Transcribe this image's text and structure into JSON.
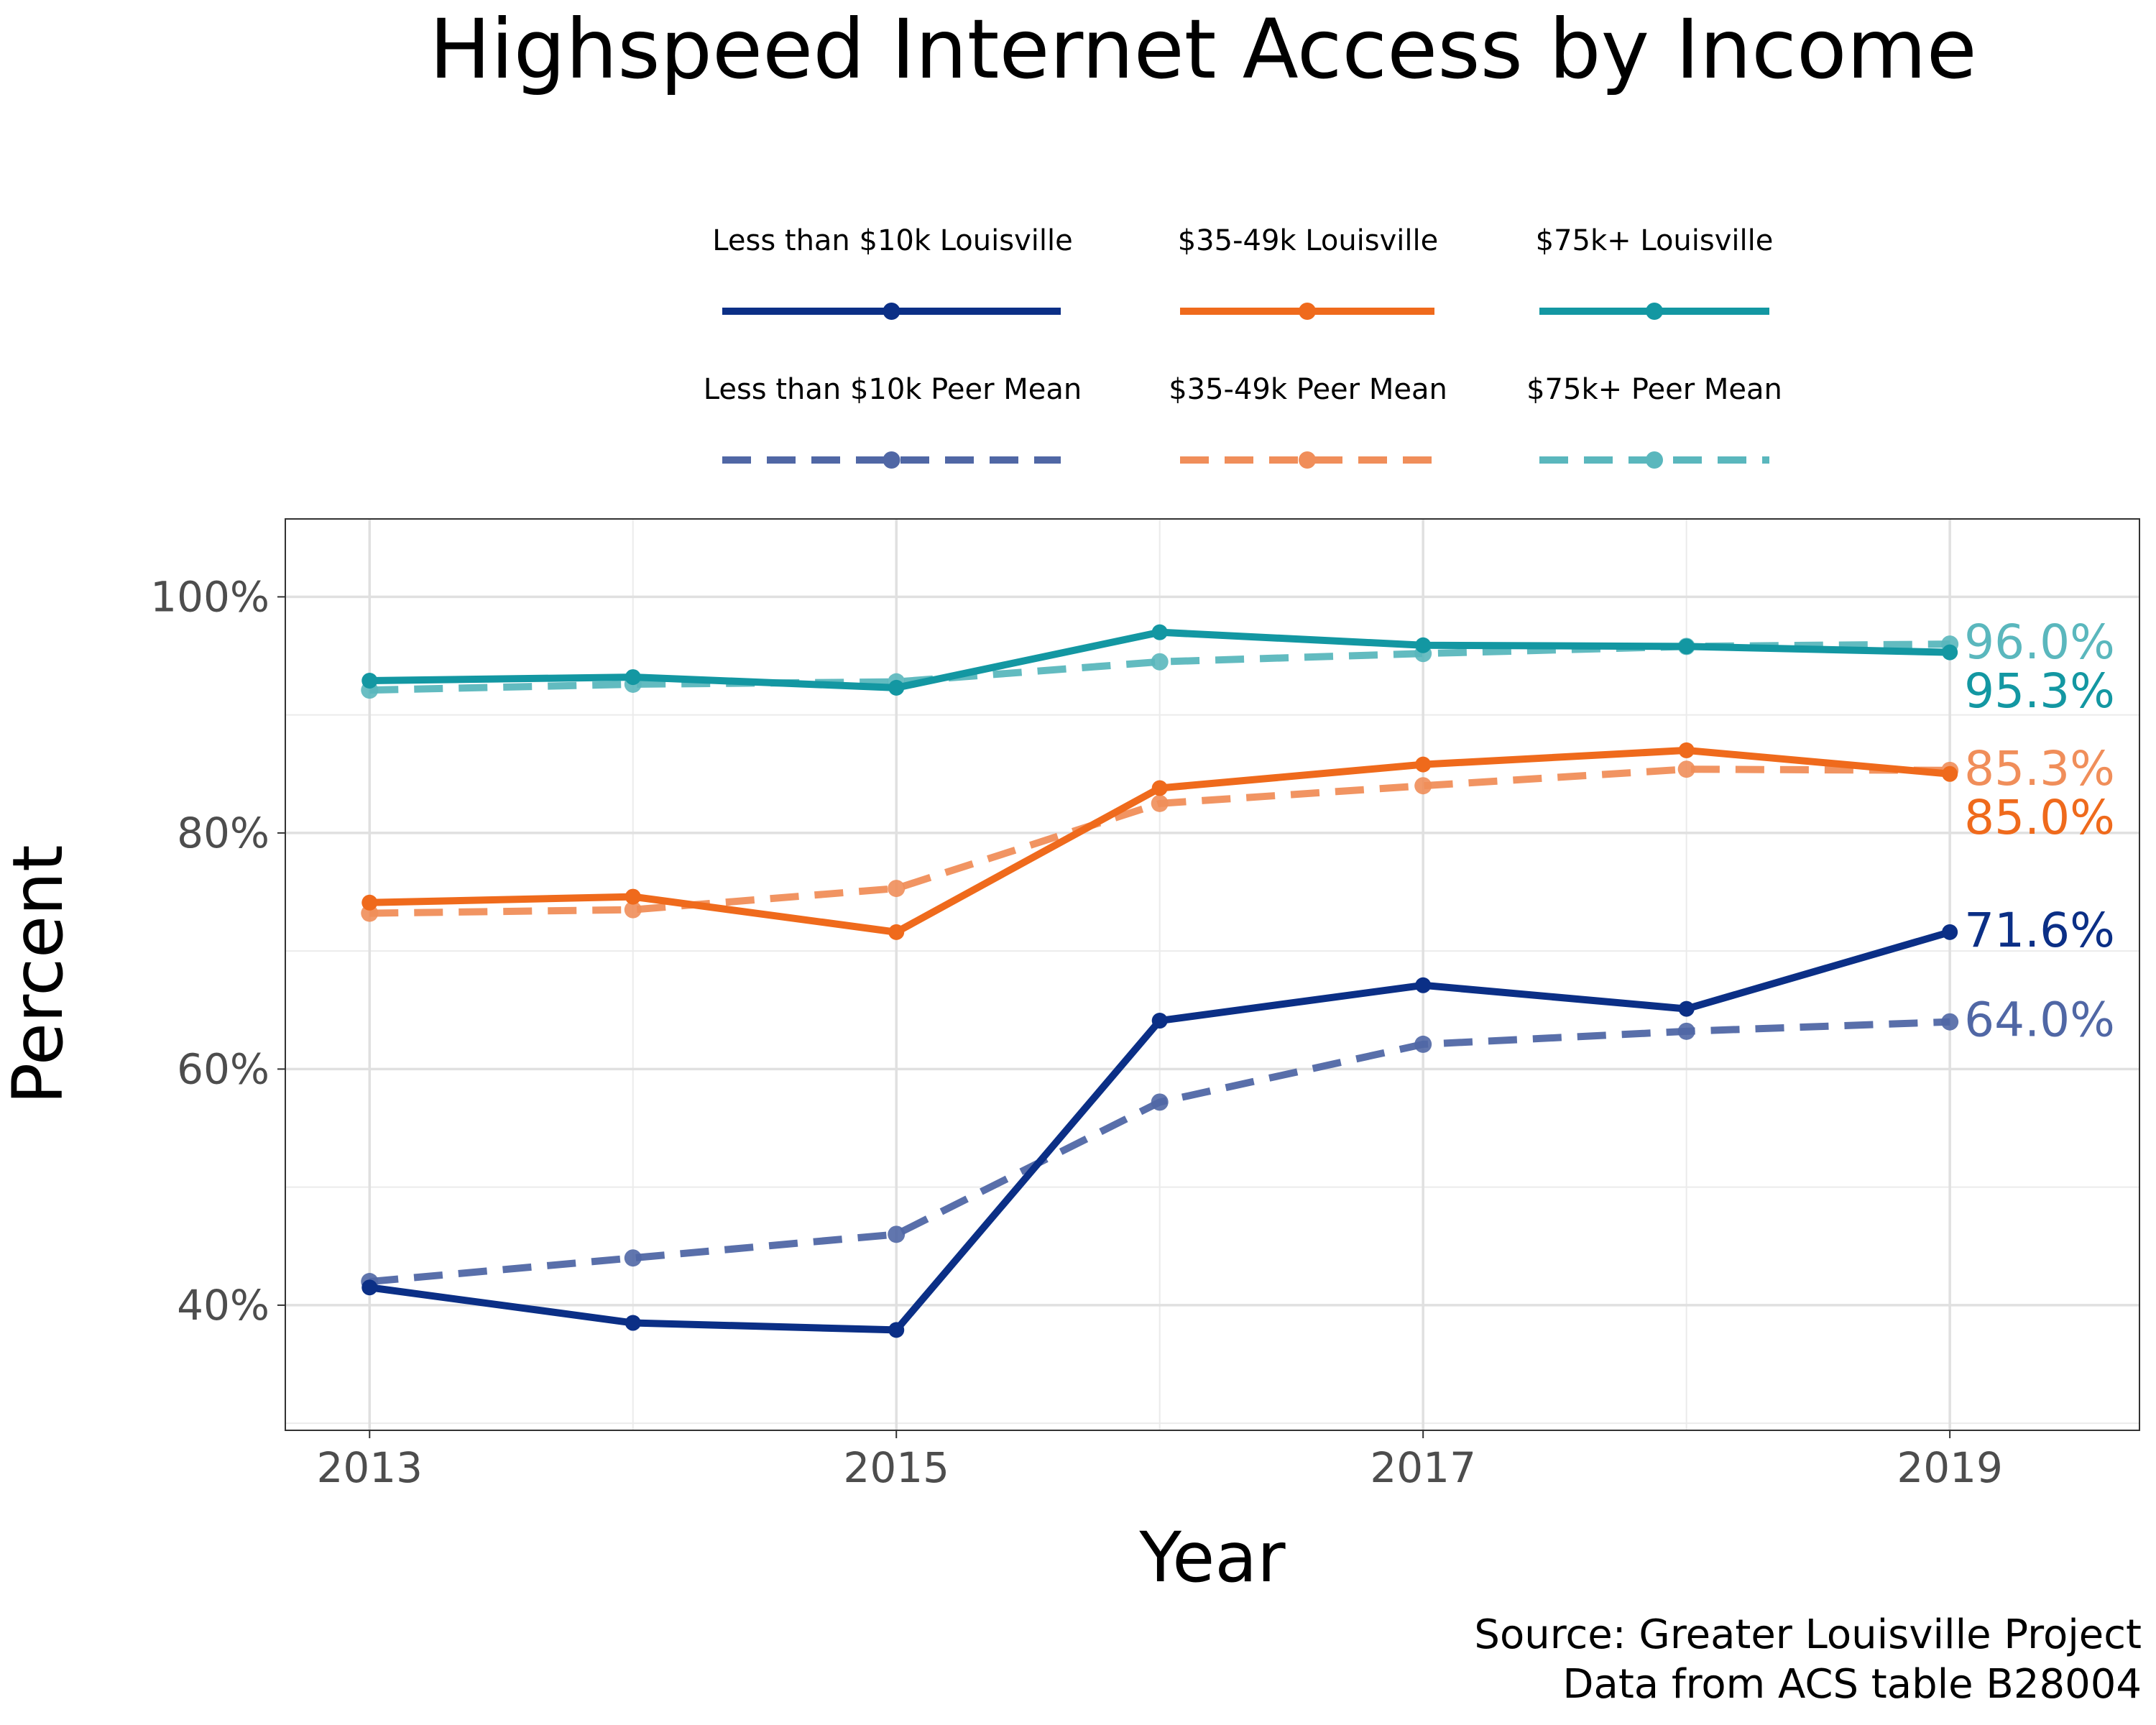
{
  "chart_data": {
    "type": "line",
    "title": "Highspeed Internet Access by Income",
    "xlabel": "Year",
    "ylabel": "Percent",
    "caption": [
      "Source: Greater Louisville Project",
      "Data from ACS table B28004"
    ],
    "xlim": [
      2012.68,
      2019.72
    ],
    "ylim": [
      29.4,
      106.6
    ],
    "x_ticks": [
      2013,
      2015,
      2017,
      2019
    ],
    "y_ticks": [
      40,
      60,
      80,
      100
    ],
    "y_tick_labels": [
      "40%",
      "60%",
      "80%",
      "100%"
    ],
    "grid": true,
    "legend_position": "top",
    "x": [
      2013,
      2014,
      2015,
      2016,
      2017,
      2018,
      2019
    ],
    "series": [
      {
        "name": "Less than $10k Louisville",
        "color": "#0b2f86",
        "dash": "solid",
        "values": [
          41.5,
          38.5,
          37.9,
          64.1,
          67.1,
          65.1,
          71.6
        ],
        "end_label": "71.6%"
      },
      {
        "name": "$35-49k Louisville",
        "color": "#ef6a1c",
        "dash": "solid",
        "values": [
          74.1,
          74.6,
          71.6,
          83.8,
          85.8,
          87.0,
          85.0
        ],
        "end_label": "85.0%"
      },
      {
        "name": "$75k+ Louisville",
        "color": "#1397a2",
        "dash": "solid",
        "values": [
          92.9,
          93.2,
          92.3,
          97.0,
          95.9,
          95.8,
          95.3
        ],
        "end_label": "95.3%"
      },
      {
        "name": "Less than $10k Peer Mean",
        "color": "#5067a5",
        "dash": "dashed",
        "values": [
          42.0,
          44.0,
          46.0,
          57.2,
          62.1,
          63.2,
          64.0
        ],
        "end_label": "64.0%"
      },
      {
        "name": "$35-49k Peer Mean",
        "color": "#f08e5a",
        "dash": "dashed",
        "values": [
          73.2,
          73.5,
          75.3,
          82.5,
          84.0,
          85.4,
          85.3
        ],
        "end_label": "85.3%"
      },
      {
        "name": "$75k+ Peer Mean",
        "color": "#5ab7bd",
        "dash": "dashed",
        "values": [
          92.1,
          92.6,
          92.8,
          94.5,
          95.2,
          95.8,
          96.0
        ],
        "end_label": "96.0%"
      }
    ]
  }
}
